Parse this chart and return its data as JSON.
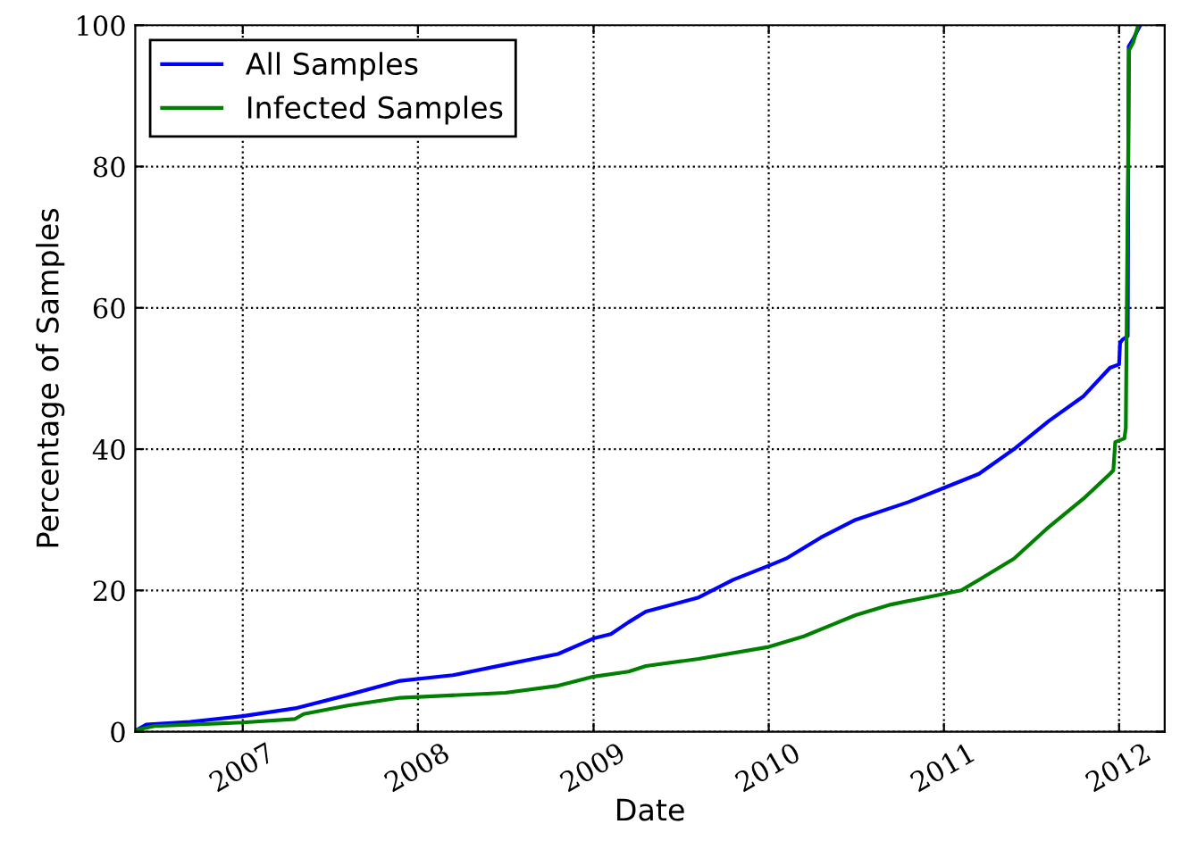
{
  "chart_data": {
    "type": "line",
    "xlabel": "Date",
    "ylabel": "Percentage of Samples",
    "xlim": [
      "2006-05-22",
      "2012-04-05"
    ],
    "ylim": [
      0,
      100
    ],
    "xticks": [
      {
        "value": "2007-01-01",
        "label": "2007"
      },
      {
        "value": "2008-01-01",
        "label": "2008"
      },
      {
        "value": "2009-01-01",
        "label": "2009"
      },
      {
        "value": "2010-01-01",
        "label": "2010"
      },
      {
        "value": "2011-01-01",
        "label": "2011"
      },
      {
        "value": "2012-01-01",
        "label": "2012"
      }
    ],
    "yticks": [
      0,
      20,
      40,
      60,
      80,
      100
    ],
    "grid": true,
    "legend": "top left",
    "line_style": "solid",
    "series": [
      {
        "name": "All Samples",
        "color": "#0000ff",
        "x": [
          "2006-05-27",
          "2006-06-14",
          "2006-09-13",
          "2007-01-01",
          "2007-04-20",
          "2007-08-08",
          "2007-11-25",
          "2008-03-14",
          "2008-07-01",
          "2008-10-19",
          "2009-01-01",
          "2009-02-06",
          "2009-03-15",
          "2009-04-20",
          "2009-08-08",
          "2009-10-19",
          "2010-01-01",
          "2010-02-06",
          "2010-04-20",
          "2010-07-01",
          "2010-10-19",
          "2011-01-01",
          "2011-03-15",
          "2011-05-27",
          "2011-08-08",
          "2011-10-19",
          "2011-12-13",
          "2012-01-01",
          "2012-01-03",
          "2012-01-08",
          "2012-01-19",
          "2012-01-21",
          "2012-01-30",
          "2012-02-14"
        ],
        "values": [
          0.3,
          1.0,
          1.4,
          2.2,
          3.3,
          5.2,
          7.2,
          8.0,
          9.5,
          11.0,
          13.2,
          13.8,
          15.5,
          17.0,
          19.0,
          21.5,
          23.5,
          24.5,
          27.5,
          30.0,
          32.5,
          34.5,
          36.5,
          40.0,
          44.0,
          47.5,
          51.5,
          52.0,
          55.0,
          55.5,
          56.0,
          97.0,
          98.0,
          100
        ]
      },
      {
        "name": "Infected Samples",
        "color": "#008000",
        "x": [
          "2006-05-27",
          "2006-07-01",
          "2007-01-01",
          "2007-04-20",
          "2007-05-08",
          "2007-08-08",
          "2007-11-25",
          "2008-07-01",
          "2008-10-19",
          "2009-01-01",
          "2009-03-15",
          "2009-04-20",
          "2009-08-08",
          "2010-01-01",
          "2010-03-15",
          "2010-05-08",
          "2010-07-01",
          "2010-09-13",
          "2010-11-25",
          "2011-02-06",
          "2011-03-15",
          "2011-05-27",
          "2011-08-08",
          "2011-10-19",
          "2011-12-13",
          "2011-12-20",
          "2011-12-24",
          "2012-01-12",
          "2012-01-15",
          "2012-01-19",
          "2012-01-22",
          "2012-01-30",
          "2012-02-10"
        ],
        "values": [
          0.3,
          0.8,
          1.3,
          1.8,
          2.5,
          3.7,
          4.8,
          5.5,
          6.5,
          7.8,
          8.5,
          9.3,
          10.3,
          12.0,
          13.5,
          15.0,
          16.5,
          18.0,
          19.0,
          20.0,
          21.5,
          24.5,
          29.0,
          33.0,
          36.5,
          37.0,
          41.0,
          41.5,
          43.0,
          75.0,
          96.5,
          97.5,
          100
        ]
      }
    ]
  }
}
